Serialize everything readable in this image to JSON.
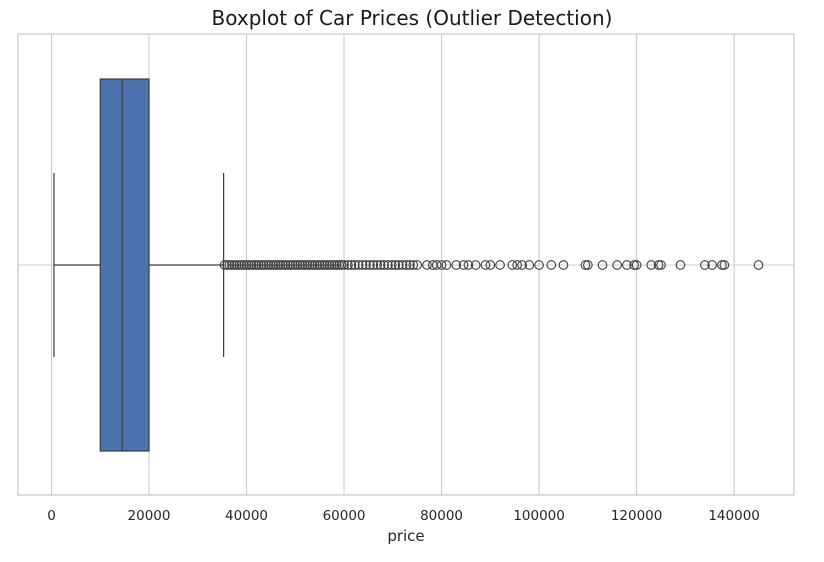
{
  "chart_data": {
    "type": "boxplot",
    "title": "Boxplot of Car Prices (Outlier Detection)",
    "xlabel": "price",
    "ylabel": "",
    "xlim": [
      -7000,
      152000
    ],
    "x_ticks": [
      0,
      20000,
      40000,
      60000,
      80000,
      100000,
      120000,
      140000
    ],
    "x_tick_labels": [
      "0",
      "20000",
      "40000",
      "60000",
      "80000",
      "100000",
      "120000",
      "140000"
    ],
    "grid": true,
    "box": {
      "whisker_low": 500,
      "q1": 10000,
      "median": 14500,
      "q3": 20000,
      "whisker_high": 35300,
      "fill_color": "#4c72b0",
      "line_color": "#3d3d3d"
    },
    "outliers": [
      35500,
      36000,
      36500,
      37000,
      37500,
      38000,
      38500,
      39000,
      39500,
      40000,
      40500,
      41000,
      41500,
      42000,
      42500,
      43000,
      43500,
      44000,
      44500,
      45000,
      45500,
      46000,
      46500,
      47000,
      47500,
      48000,
      48500,
      49000,
      49500,
      50000,
      50500,
      51000,
      51500,
      52000,
      52500,
      53000,
      53500,
      54000,
      54500,
      55000,
      55500,
      56000,
      56500,
      57000,
      57500,
      58000,
      58500,
      59000,
      59500,
      60000,
      60800,
      61500,
      62200,
      63000,
      63800,
      64500,
      65300,
      66000,
      66800,
      67500,
      68200,
      69000,
      69800,
      70500,
      71200,
      72000,
      72800,
      73500,
      74200,
      75000,
      77000,
      78200,
      79000,
      80000,
      81000,
      83000,
      84500,
      85500,
      87000,
      89000,
      90000,
      92000,
      94500,
      95500,
      96500,
      98000,
      100000,
      102500,
      105000,
      109500,
      110000,
      113000,
      116000,
      118000,
      119500,
      120000,
      123000,
      124500,
      125000,
      129000,
      134000,
      135500,
      137500,
      138000,
      145000
    ],
    "background_color": "#ffffff",
    "grid_color": "#cccccc"
  }
}
